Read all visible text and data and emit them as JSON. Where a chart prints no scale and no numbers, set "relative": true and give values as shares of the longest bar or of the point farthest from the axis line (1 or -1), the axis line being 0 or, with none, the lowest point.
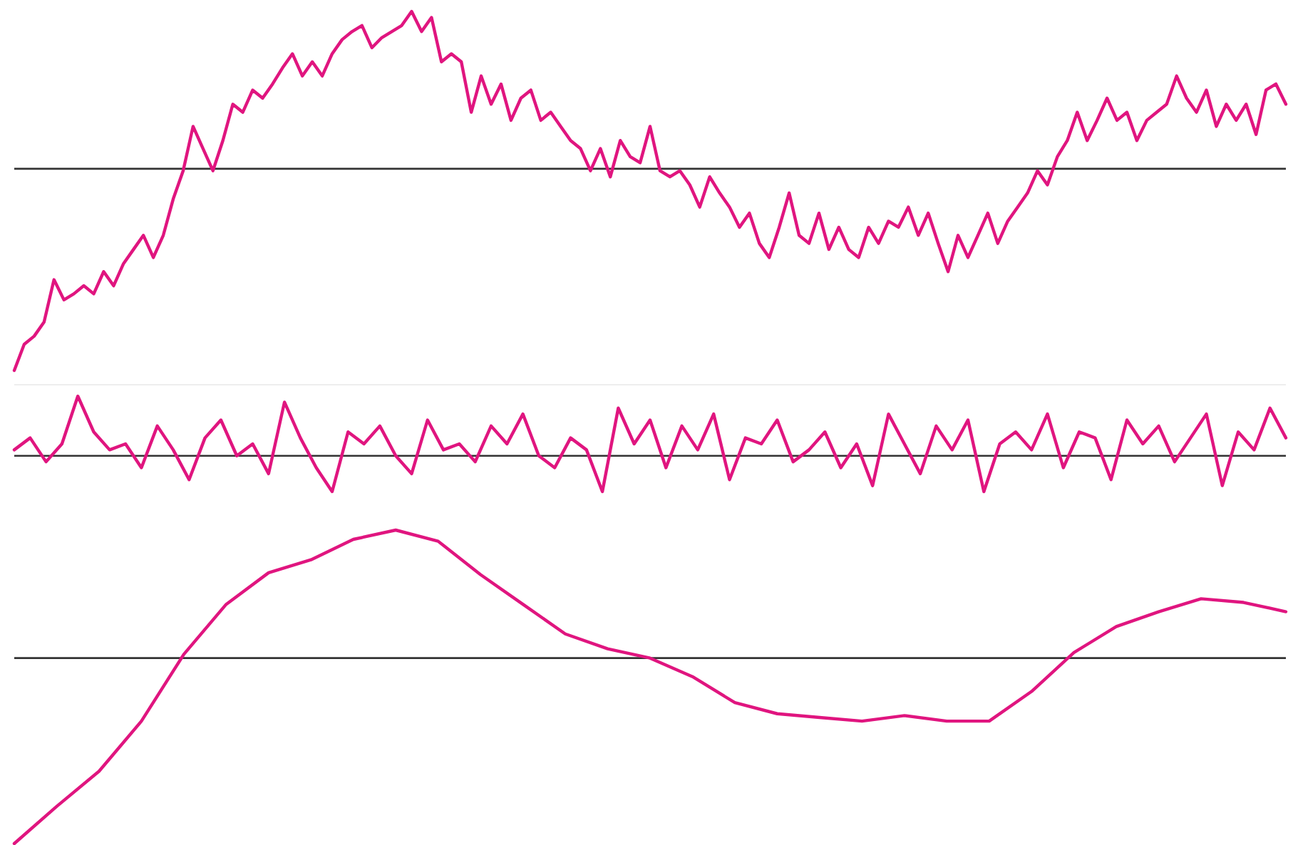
{
  "chart_data": [
    {
      "type": "line",
      "relative": true,
      "color": "#e0157f",
      "categories": [
        null,
        null,
        null,
        null,
        null,
        null,
        null,
        null,
        null,
        null,
        null,
        null,
        null,
        null,
        null,
        null,
        null,
        null,
        null,
        null,
        null,
        null,
        null,
        null,
        null,
        null,
        null,
        null,
        null,
        null,
        null,
        null,
        null,
        null,
        null,
        null,
        null,
        null,
        null,
        null,
        null,
        null,
        null,
        null,
        null,
        null,
        null,
        null,
        null,
        null,
        null,
        null,
        null,
        null,
        null,
        null,
        null,
        null,
        null,
        null,
        null,
        null,
        null,
        null,
        null,
        null,
        null,
        null,
        null,
        null,
        null,
        null,
        null,
        null,
        null,
        null,
        null,
        null,
        null,
        null,
        null,
        null,
        null,
        null,
        null,
        null,
        null,
        null,
        null,
        null,
        null,
        null,
        null,
        null,
        null,
        null,
        null,
        null,
        null,
        null,
        null,
        null,
        null,
        null,
        null,
        null,
        null,
        null,
        null,
        null,
        null,
        null,
        null,
        null,
        null,
        null,
        null,
        null,
        null,
        null,
        null,
        null,
        null,
        null,
        null,
        null,
        null,
        null,
        null
      ],
      "values": [
        -1,
        -0.87,
        -0.83,
        -0.76,
        -0.55,
        -0.65,
        -0.62,
        -0.58,
        -0.62,
        -0.51,
        -0.58,
        -0.47,
        -0.4,
        -0.33,
        -0.44,
        -0.33,
        -0.15,
        -0.01,
        0.21,
        0.1,
        -0.01,
        0.14,
        0.32,
        0.28,
        0.39,
        0.35,
        0.42,
        0.5,
        0.57,
        0.46,
        0.53,
        0.46,
        0.57,
        0.64,
        0.68,
        0.71,
        0.6,
        0.65,
        0.68,
        0.71,
        0.78,
        0.68,
        0.75,
        0.53,
        0.57,
        0.53,
        0.28,
        0.46,
        0.32,
        0.42,
        0.24,
        0.35,
        0.39,
        0.24,
        0.28,
        0.21,
        0.14,
        0.1,
        -0.01,
        0.1,
        -0.04,
        0.14,
        0.06,
        0.03,
        0.21,
        -0.01,
        -0.04,
        -0.01,
        -0.08,
        -0.19,
        -0.04,
        -0.12,
        -0.19,
        -0.29,
        -0.22,
        -0.37,
        -0.44,
        -0.29,
        -0.12,
        -0.33,
        -0.37,
        -0.22,
        -0.4,
        -0.29,
        -0.4,
        -0.44,
        -0.29,
        -0.37,
        -0.26,
        -0.29,
        -0.19,
        -0.33,
        -0.22,
        -0.37,
        -0.51,
        -0.33,
        -0.44,
        -0.33,
        -0.22,
        -0.37,
        -0.26,
        -0.19,
        -0.12,
        -0.01,
        -0.08,
        0.06,
        0.14,
        0.28,
        0.14,
        0.24,
        0.35,
        0.24,
        0.28,
        0.14,
        0.24,
        0.28,
        0.32,
        0.46,
        0.35,
        0.28,
        0.39,
        0.21,
        0.32,
        0.24,
        0.32,
        0.17,
        0.39,
        0.42,
        0.32
      ]
    },
    {
      "type": "line",
      "relative": true,
      "color": "#e0157f",
      "categories": [
        null,
        null,
        null,
        null,
        null,
        null,
        null,
        null,
        null,
        null,
        null,
        null,
        null,
        null,
        null,
        null,
        null,
        null,
        null,
        null,
        null,
        null,
        null,
        null,
        null,
        null,
        null,
        null,
        null,
        null,
        null,
        null,
        null,
        null,
        null,
        null,
        null,
        null,
        null,
        null,
        null,
        null,
        null,
        null,
        null,
        null,
        null,
        null,
        null,
        null,
        null,
        null,
        null,
        null,
        null,
        null,
        null,
        null,
        null,
        null,
        null,
        null,
        null,
        null,
        null,
        null,
        null,
        null,
        null,
        null,
        null,
        null,
        null,
        null,
        null,
        null,
        null,
        null,
        null,
        null,
        null
      ],
      "values": [
        0.1,
        0.3,
        -0.1,
        0.2,
        1,
        0.4,
        0.1,
        0.2,
        -0.2,
        0.5,
        0.1,
        -0.4,
        0.3,
        0.6,
        0,
        0.2,
        -0.3,
        0.9,
        0.3,
        -0.2,
        -0.6,
        0.4,
        0.2,
        0.5,
        0,
        -0.3,
        0.6,
        0.1,
        0.2,
        -0.1,
        0.5,
        0.2,
        0.7,
        0,
        -0.2,
        0.3,
        0.1,
        -0.6,
        0.8,
        0.2,
        0.6,
        -0.2,
        0.5,
        0.1,
        0.7,
        -0.4,
        0.3,
        0.2,
        0.6,
        -0.1,
        0.1,
        0.4,
        -0.2,
        0.2,
        -0.5,
        0.7,
        0.2,
        -0.3,
        0.5,
        0.1,
        0.6,
        -0.6,
        0.2,
        0.4,
        0.1,
        0.7,
        -0.2,
        0.4,
        0.3,
        -0.4,
        0.6,
        0.2,
        0.5,
        -0.1,
        0.3,
        0.7,
        -0.5,
        0.4,
        0.1,
        0.8,
        0.3
      ]
    },
    {
      "type": "line",
      "relative": true,
      "color": "#e0157f",
      "categories": [
        null,
        null,
        null,
        null,
        null,
        null,
        null,
        null,
        null,
        null,
        null,
        null,
        null,
        null,
        null,
        null,
        null,
        null,
        null,
        null,
        null,
        null,
        null,
        null,
        null,
        null,
        null,
        null,
        null,
        null,
        null
      ],
      "values": [
        -1,
        -0.8,
        -0.61,
        -0.34,
        0.02,
        0.29,
        0.46,
        0.53,
        0.64,
        0.69,
        0.63,
        0.45,
        0.29,
        0.13,
        0.05,
        0,
        -0.1,
        -0.24,
        -0.3,
        -0.32,
        -0.34,
        -0.31,
        -0.34,
        -0.34,
        -0.18,
        0.03,
        0.17,
        0.25,
        0.32,
        0.3,
        0.25
      ]
    }
  ]
}
